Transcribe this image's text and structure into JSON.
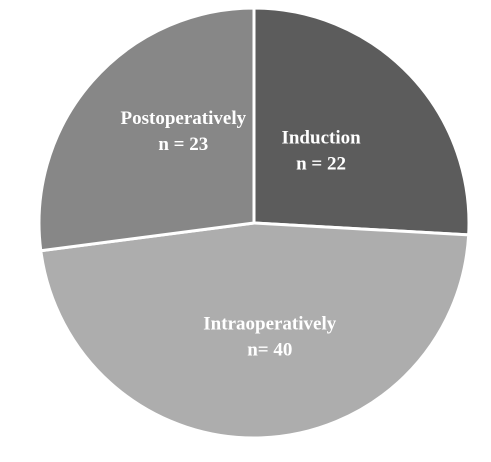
{
  "chart_data": {
    "type": "pie",
    "start": "12 o'clock",
    "direction": "clockwise",
    "slice_border_color": "#ffffff",
    "slices": [
      {
        "label": "Induction",
        "count_text": "n = 22",
        "value": 22,
        "color": "#5c5c5c"
      },
      {
        "label": "Intraoperatively",
        "count_text": "n= 40",
        "value": 40,
        "color": "#adadad"
      },
      {
        "label": "Postoperatively",
        "count_text": "n = 23",
        "value": 23,
        "color": "#878787"
      }
    ]
  }
}
